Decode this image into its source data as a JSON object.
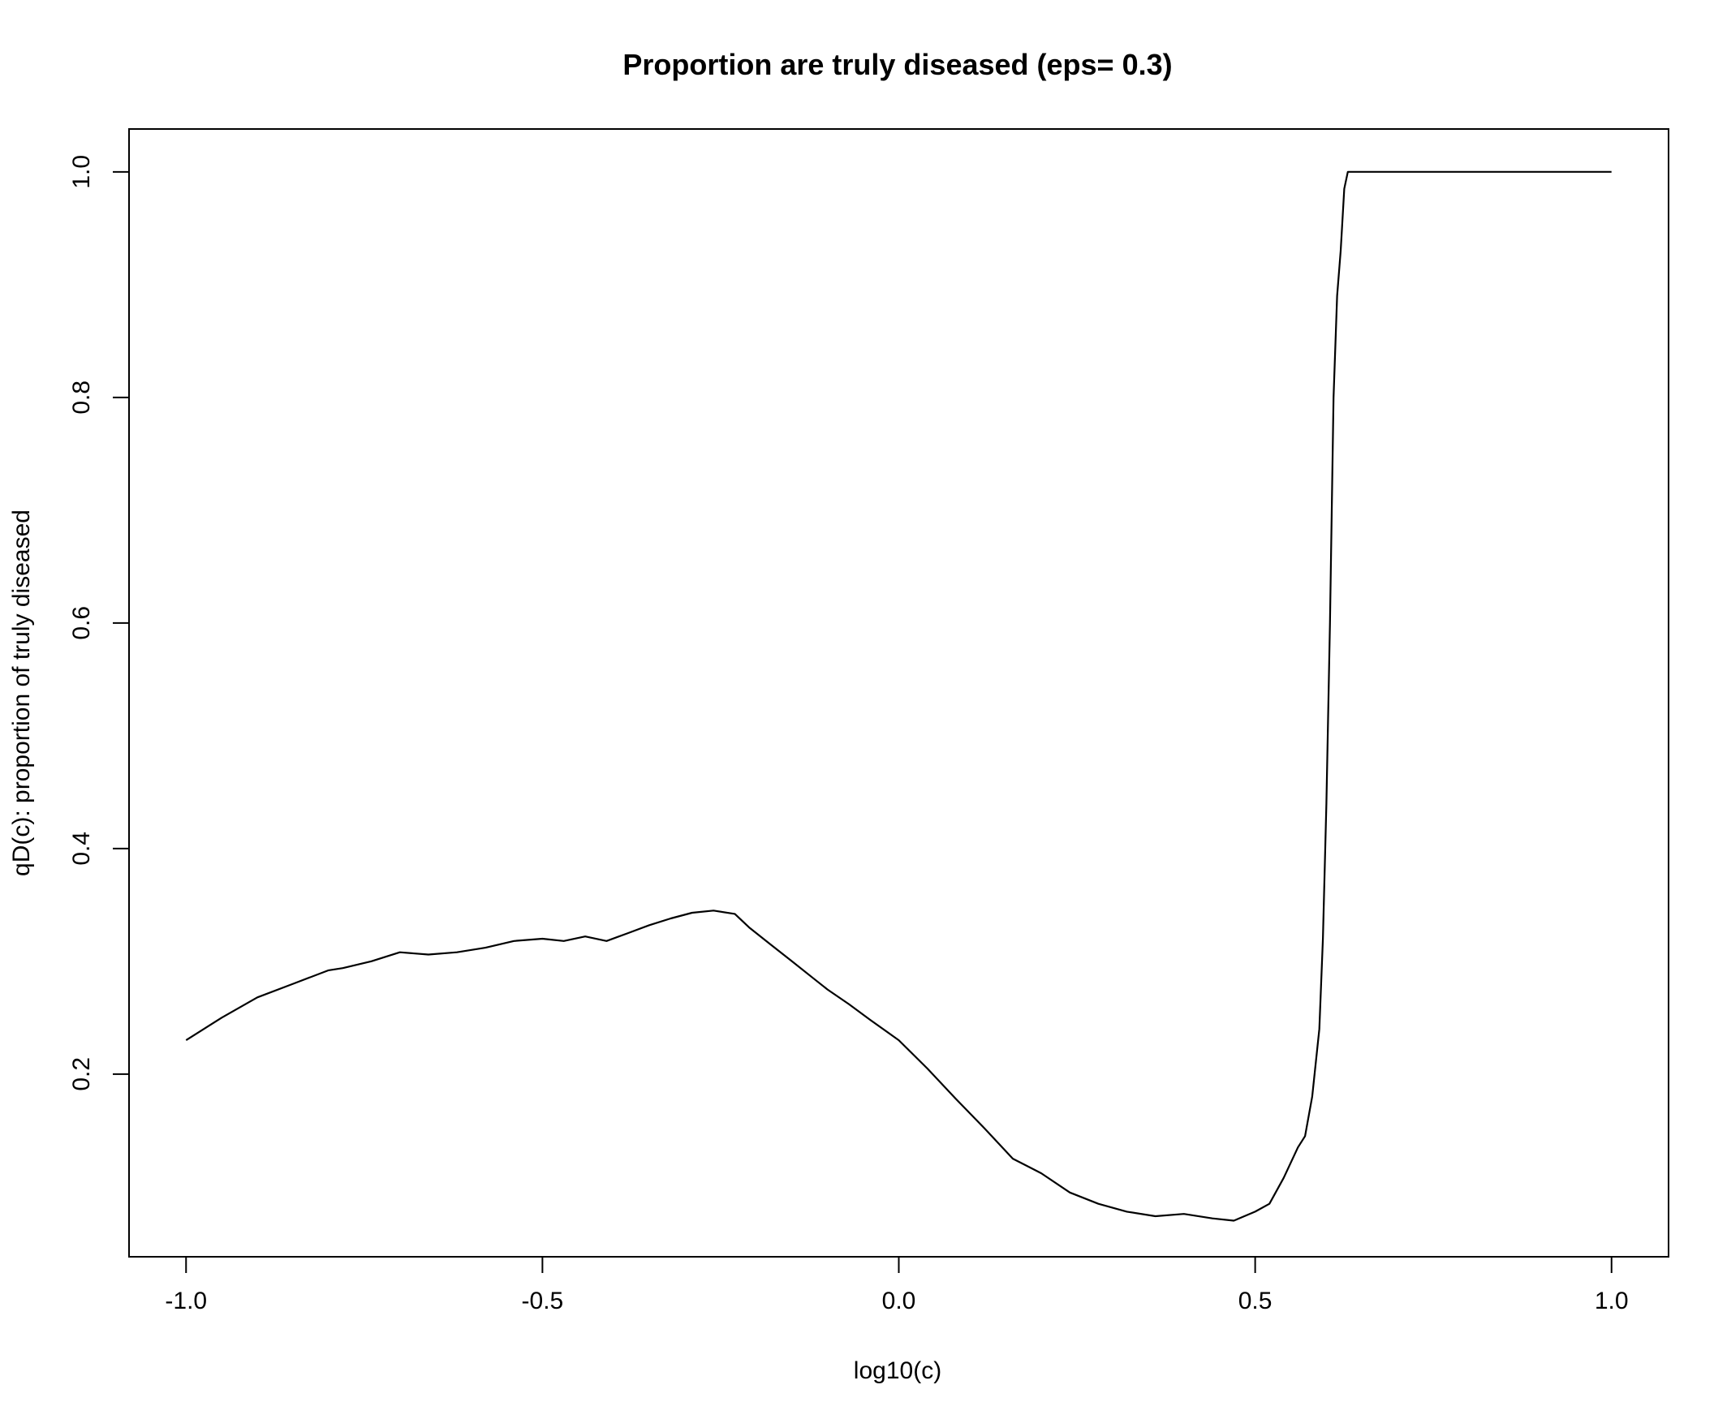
{
  "chart_data": {
    "type": "line",
    "title": "Proportion are truly diseased (eps= 0.3)",
    "xlabel": "log10(c)",
    "ylabel": "qD(c): proportion of truly diseased",
    "xlim": [
      -1.08,
      1.08
    ],
    "ylim": [
      0.038,
      1.038
    ],
    "x_ticks": [
      -1.0,
      -0.5,
      0.0,
      0.5,
      1.0
    ],
    "x_tick_labels": [
      "-1.0",
      "-0.5",
      "0.0",
      "0.5",
      "1.0"
    ],
    "y_ticks": [
      0.2,
      0.4,
      0.6,
      0.8,
      1.0
    ],
    "y_tick_labels": [
      "0.2",
      "0.4",
      "0.6",
      "0.8",
      "1.0"
    ],
    "grid": false,
    "line_color": "#000000",
    "series": [
      {
        "x": [
          -1.0,
          -0.95,
          -0.9,
          -0.85,
          -0.8,
          -0.78,
          -0.74,
          -0.7,
          -0.66,
          -0.62,
          -0.58,
          -0.54,
          -0.5,
          -0.47,
          -0.44,
          -0.41,
          -0.38,
          -0.35,
          -0.32,
          -0.29,
          -0.26,
          -0.23,
          -0.21,
          -0.18,
          -0.15,
          -0.12,
          -0.1,
          -0.07,
          -0.04,
          0.0,
          0.04,
          0.08,
          0.12,
          0.16,
          0.2,
          0.24,
          0.28,
          0.32,
          0.36,
          0.4,
          0.44,
          0.47,
          0.5,
          0.52,
          0.54,
          0.56,
          0.57,
          0.58,
          0.59,
          0.595,
          0.6,
          0.605,
          0.61,
          0.615,
          0.62,
          0.625,
          0.63,
          0.635,
          0.65,
          0.7,
          0.8,
          0.9,
          1.0
        ],
        "y": [
          0.23,
          0.25,
          0.268,
          0.28,
          0.292,
          0.294,
          0.3,
          0.308,
          0.306,
          0.308,
          0.312,
          0.318,
          0.32,
          0.318,
          0.322,
          0.318,
          0.325,
          0.332,
          0.338,
          0.343,
          0.345,
          0.342,
          0.33,
          0.315,
          0.3,
          0.285,
          0.275,
          0.262,
          0.248,
          0.23,
          0.205,
          0.178,
          0.152,
          0.125,
          0.112,
          0.095,
          0.085,
          0.078,
          0.074,
          0.076,
          0.072,
          0.07,
          0.078,
          0.085,
          0.108,
          0.135,
          0.145,
          0.18,
          0.24,
          0.32,
          0.44,
          0.6,
          0.8,
          0.89,
          0.93,
          0.985,
          1.0,
          1.0,
          1.0,
          1.0,
          1.0,
          1.0,
          1.0
        ]
      }
    ]
  }
}
